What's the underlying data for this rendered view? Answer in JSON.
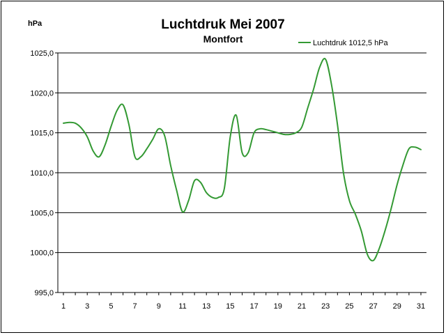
{
  "chart_data": {
    "type": "line",
    "title": "Luchtdruk Mei 2007",
    "subtitle": "Montfort",
    "ylabel": "hPa",
    "xlabel": "",
    "ylim": [
      995,
      1025
    ],
    "xlim": [
      1,
      31
    ],
    "y_ticks": [
      995,
      1000,
      1005,
      1010,
      1015,
      1020,
      1025
    ],
    "y_tick_labels": [
      "995,0",
      "1000,0",
      "1005,0",
      "1010,0",
      "1015,0",
      "1020,0",
      "1025,0"
    ],
    "x_ticks": [
      1,
      3,
      5,
      7,
      9,
      11,
      13,
      15,
      17,
      19,
      21,
      23,
      25,
      27,
      29,
      31
    ],
    "x_tick_labels": [
      "1",
      "3",
      "5",
      "7",
      "9",
      "11",
      "13",
      "15",
      "17",
      "19",
      "21",
      "23",
      "25",
      "27",
      "29",
      "31"
    ],
    "grid": true,
    "legend_position": "top-right",
    "series": [
      {
        "name": "Luchtdruk 1012,5 hPa",
        "color": "#339933",
        "x": [
          1,
          1.5,
          2,
          2.5,
          3,
          3.5,
          4,
          4.5,
          5,
          5.5,
          6,
          6.5,
          7,
          7.5,
          8,
          8.5,
          9,
          9.5,
          10,
          10.5,
          11,
          11.5,
          12,
          12.5,
          13,
          13.5,
          14,
          14.5,
          15,
          15.5,
          16,
          16.5,
          17,
          17.5,
          18,
          18.5,
          19,
          19.5,
          20,
          20.5,
          21,
          21.5,
          22,
          22.5,
          23,
          23.5,
          24,
          24.5,
          25,
          25.5,
          26,
          26.5,
          27,
          27.5,
          28,
          28.5,
          29,
          29.5,
          30,
          30.5,
          31
        ],
        "values": [
          1016.2,
          1016.3,
          1016.2,
          1015.6,
          1014.5,
          1012.7,
          1012.0,
          1013.5,
          1015.8,
          1017.8,
          1018.5,
          1016.0,
          1012.0,
          1012.0,
          1013.0,
          1014.2,
          1015.5,
          1014.6,
          1010.9,
          1007.8,
          1005.1,
          1006.5,
          1009.0,
          1008.8,
          1007.5,
          1006.9,
          1006.9,
          1008.0,
          1014.5,
          1017.2,
          1012.5,
          1012.5,
          1015.0,
          1015.5,
          1015.4,
          1015.2,
          1015.0,
          1014.8,
          1014.8,
          1015.0,
          1015.7,
          1018.1,
          1020.5,
          1023.2,
          1024.2,
          1021.0,
          1016.0,
          1010.0,
          1006.5,
          1004.8,
          1002.7,
          999.8,
          999.0,
          1000.5,
          1002.8,
          1005.5,
          1008.5,
          1011.0,
          1013.0,
          1013.2,
          1012.9
        ]
      }
    ]
  }
}
